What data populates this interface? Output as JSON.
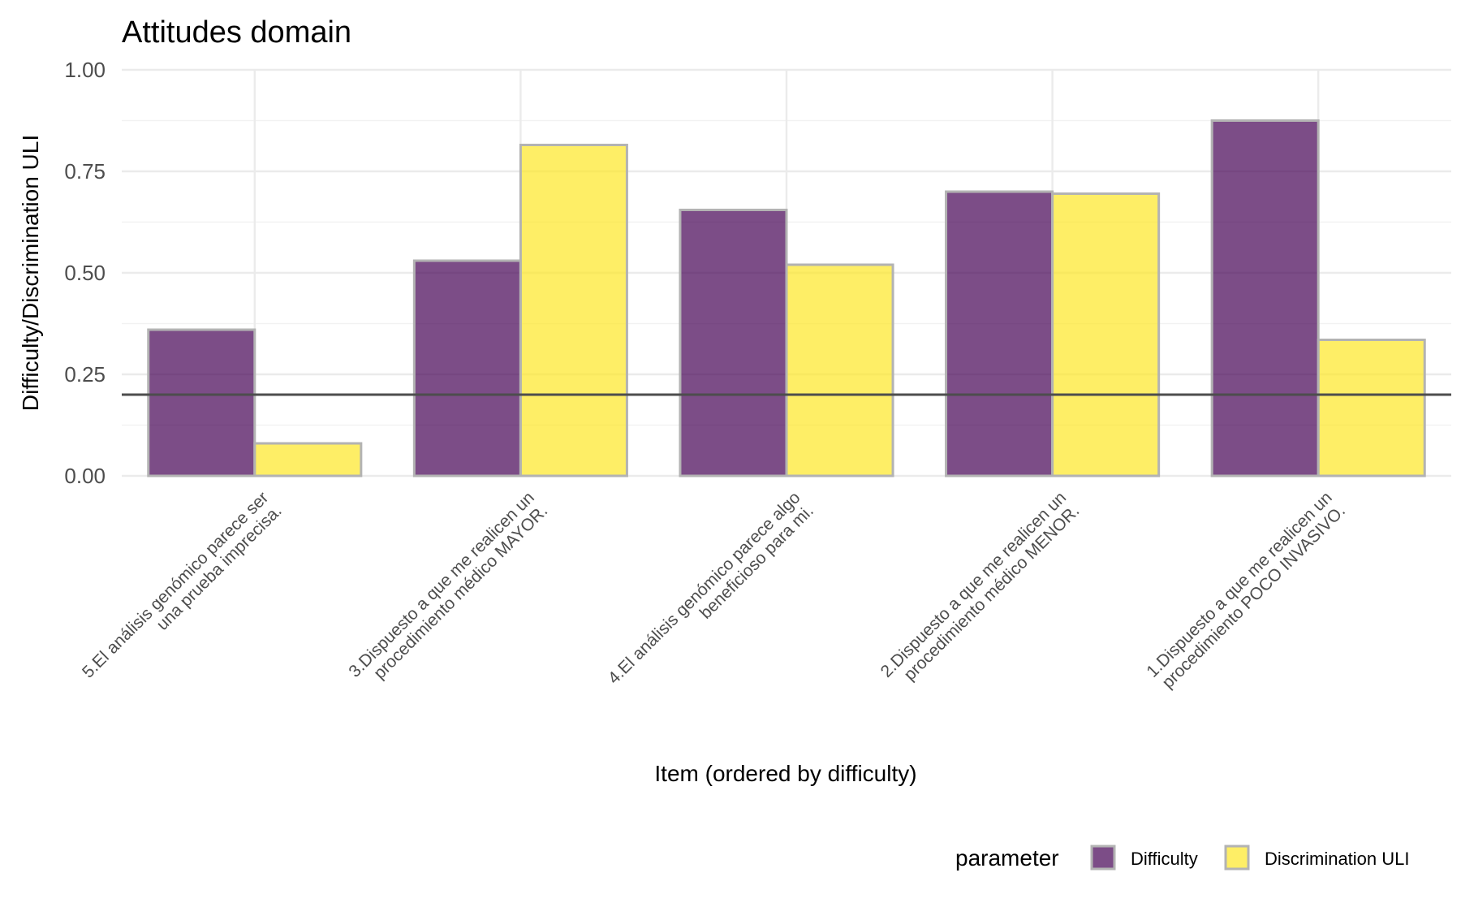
{
  "chart_data": {
    "type": "bar",
    "title": "Attitudes domain",
    "xlabel": "Item (ordered by difficulty)",
    "ylabel": "Difficulty/Discrimination ULI",
    "ylim": [
      0,
      1
    ],
    "yticks": [
      0,
      0.25,
      0.5,
      0.75,
      1.0
    ],
    "ytick_labels": [
      "0.00",
      "0.25",
      "0.50",
      "0.75",
      "1.00"
    ],
    "categories": [
      [
        "5.El análisis genómico parece ser",
        "una prueba imprecisa."
      ],
      [
        "3.Dispuesto a que me realicen un",
        "procedimiento médico MAYOR."
      ],
      [
        "4.El análisis genómico parece algo",
        "beneficioso para mi."
      ],
      [
        "2.Dispuesto a que me realicen un",
        "procedimiento médico MENOR."
      ],
      [
        "1.Dispuesto a que me realicen un",
        "procedimiento POCO INVASIVO."
      ]
    ],
    "series": [
      {
        "name": "Difficulty",
        "color": "#440154",
        "values": [
          0.36,
          0.53,
          0.655,
          0.7,
          0.875
        ]
      },
      {
        "name": "Discrimination ULI",
        "color": "#FDE725",
        "values": [
          0.08,
          0.815,
          0.52,
          0.695,
          0.335
        ]
      }
    ],
    "reference_line": {
      "y": 0.2,
      "color": "#4d4d4d"
    },
    "grid": true,
    "legend": {
      "title": "parameter",
      "position": "bottom-right"
    }
  }
}
